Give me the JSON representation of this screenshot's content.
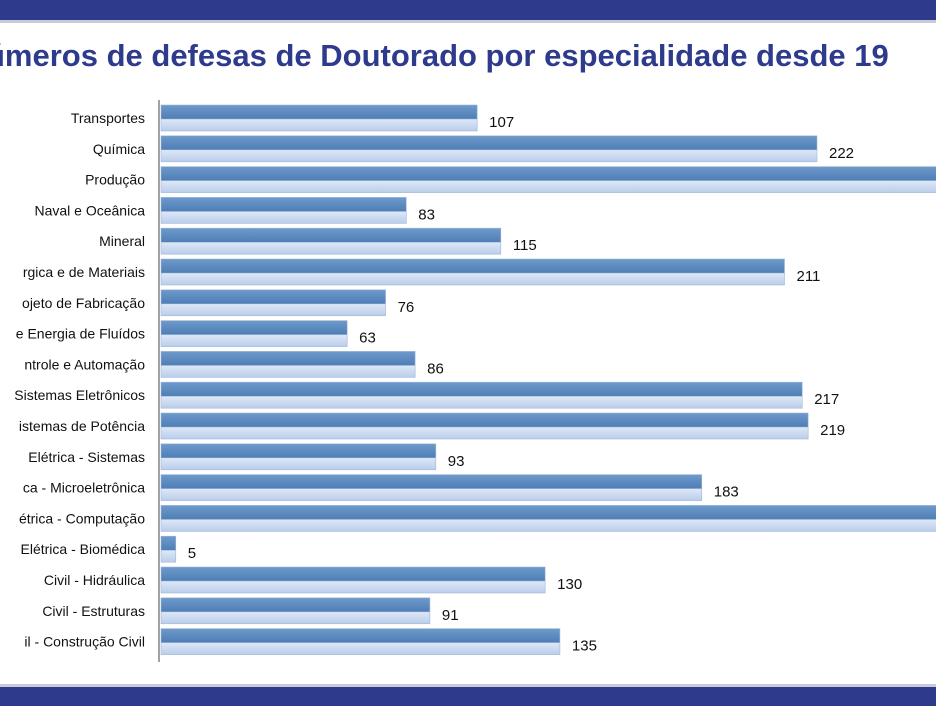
{
  "title": "úmeros de defesas de Doutorado por especialidade desde 19",
  "chart_data": {
    "type": "bar",
    "orientation": "horizontal",
    "title": "úmeros de defesas de Doutorado por especialidade desde 19",
    "categories": [
      "Transportes",
      "Química",
      "Produção",
      "Naval e Oceânica",
      "Mineral",
      "rgica e de Materiais",
      "ojeto de Fabricação",
      "e Energia de Fluídos",
      "ntrole e Automação",
      "Sistemas Eletrônicos",
      "istemas de Potência",
      "Elétrica - Sistemas",
      "ca - Microeletrônica",
      "étrica - Computação",
      "Elétrica - Biomédica",
      "Civil - Hidráulica",
      "Civil - Estruturas",
      "il - Construção Civil"
    ],
    "values": [
      107,
      222,
      null,
      83,
      115,
      211,
      76,
      63,
      86,
      217,
      219,
      93,
      183,
      null,
      5,
      130,
      91,
      135
    ],
    "value_labels": [
      "107",
      "222",
      "",
      "83",
      "115",
      "211",
      "76",
      "63",
      "86",
      "217",
      "219",
      "93",
      "183",
      "",
      "5",
      "130",
      "91",
      "135"
    ],
    "clipped_bars": [
      "Produção",
      "étrica - Computação"
    ],
    "xlim": [
      0,
      265
    ],
    "grid": false,
    "legend": "none",
    "colors": {
      "bar_top": "#5a87bd",
      "bar_bottom": "#d7e3f6",
      "title": "#2e3a8c",
      "band": "#2e3a8c"
    }
  }
}
